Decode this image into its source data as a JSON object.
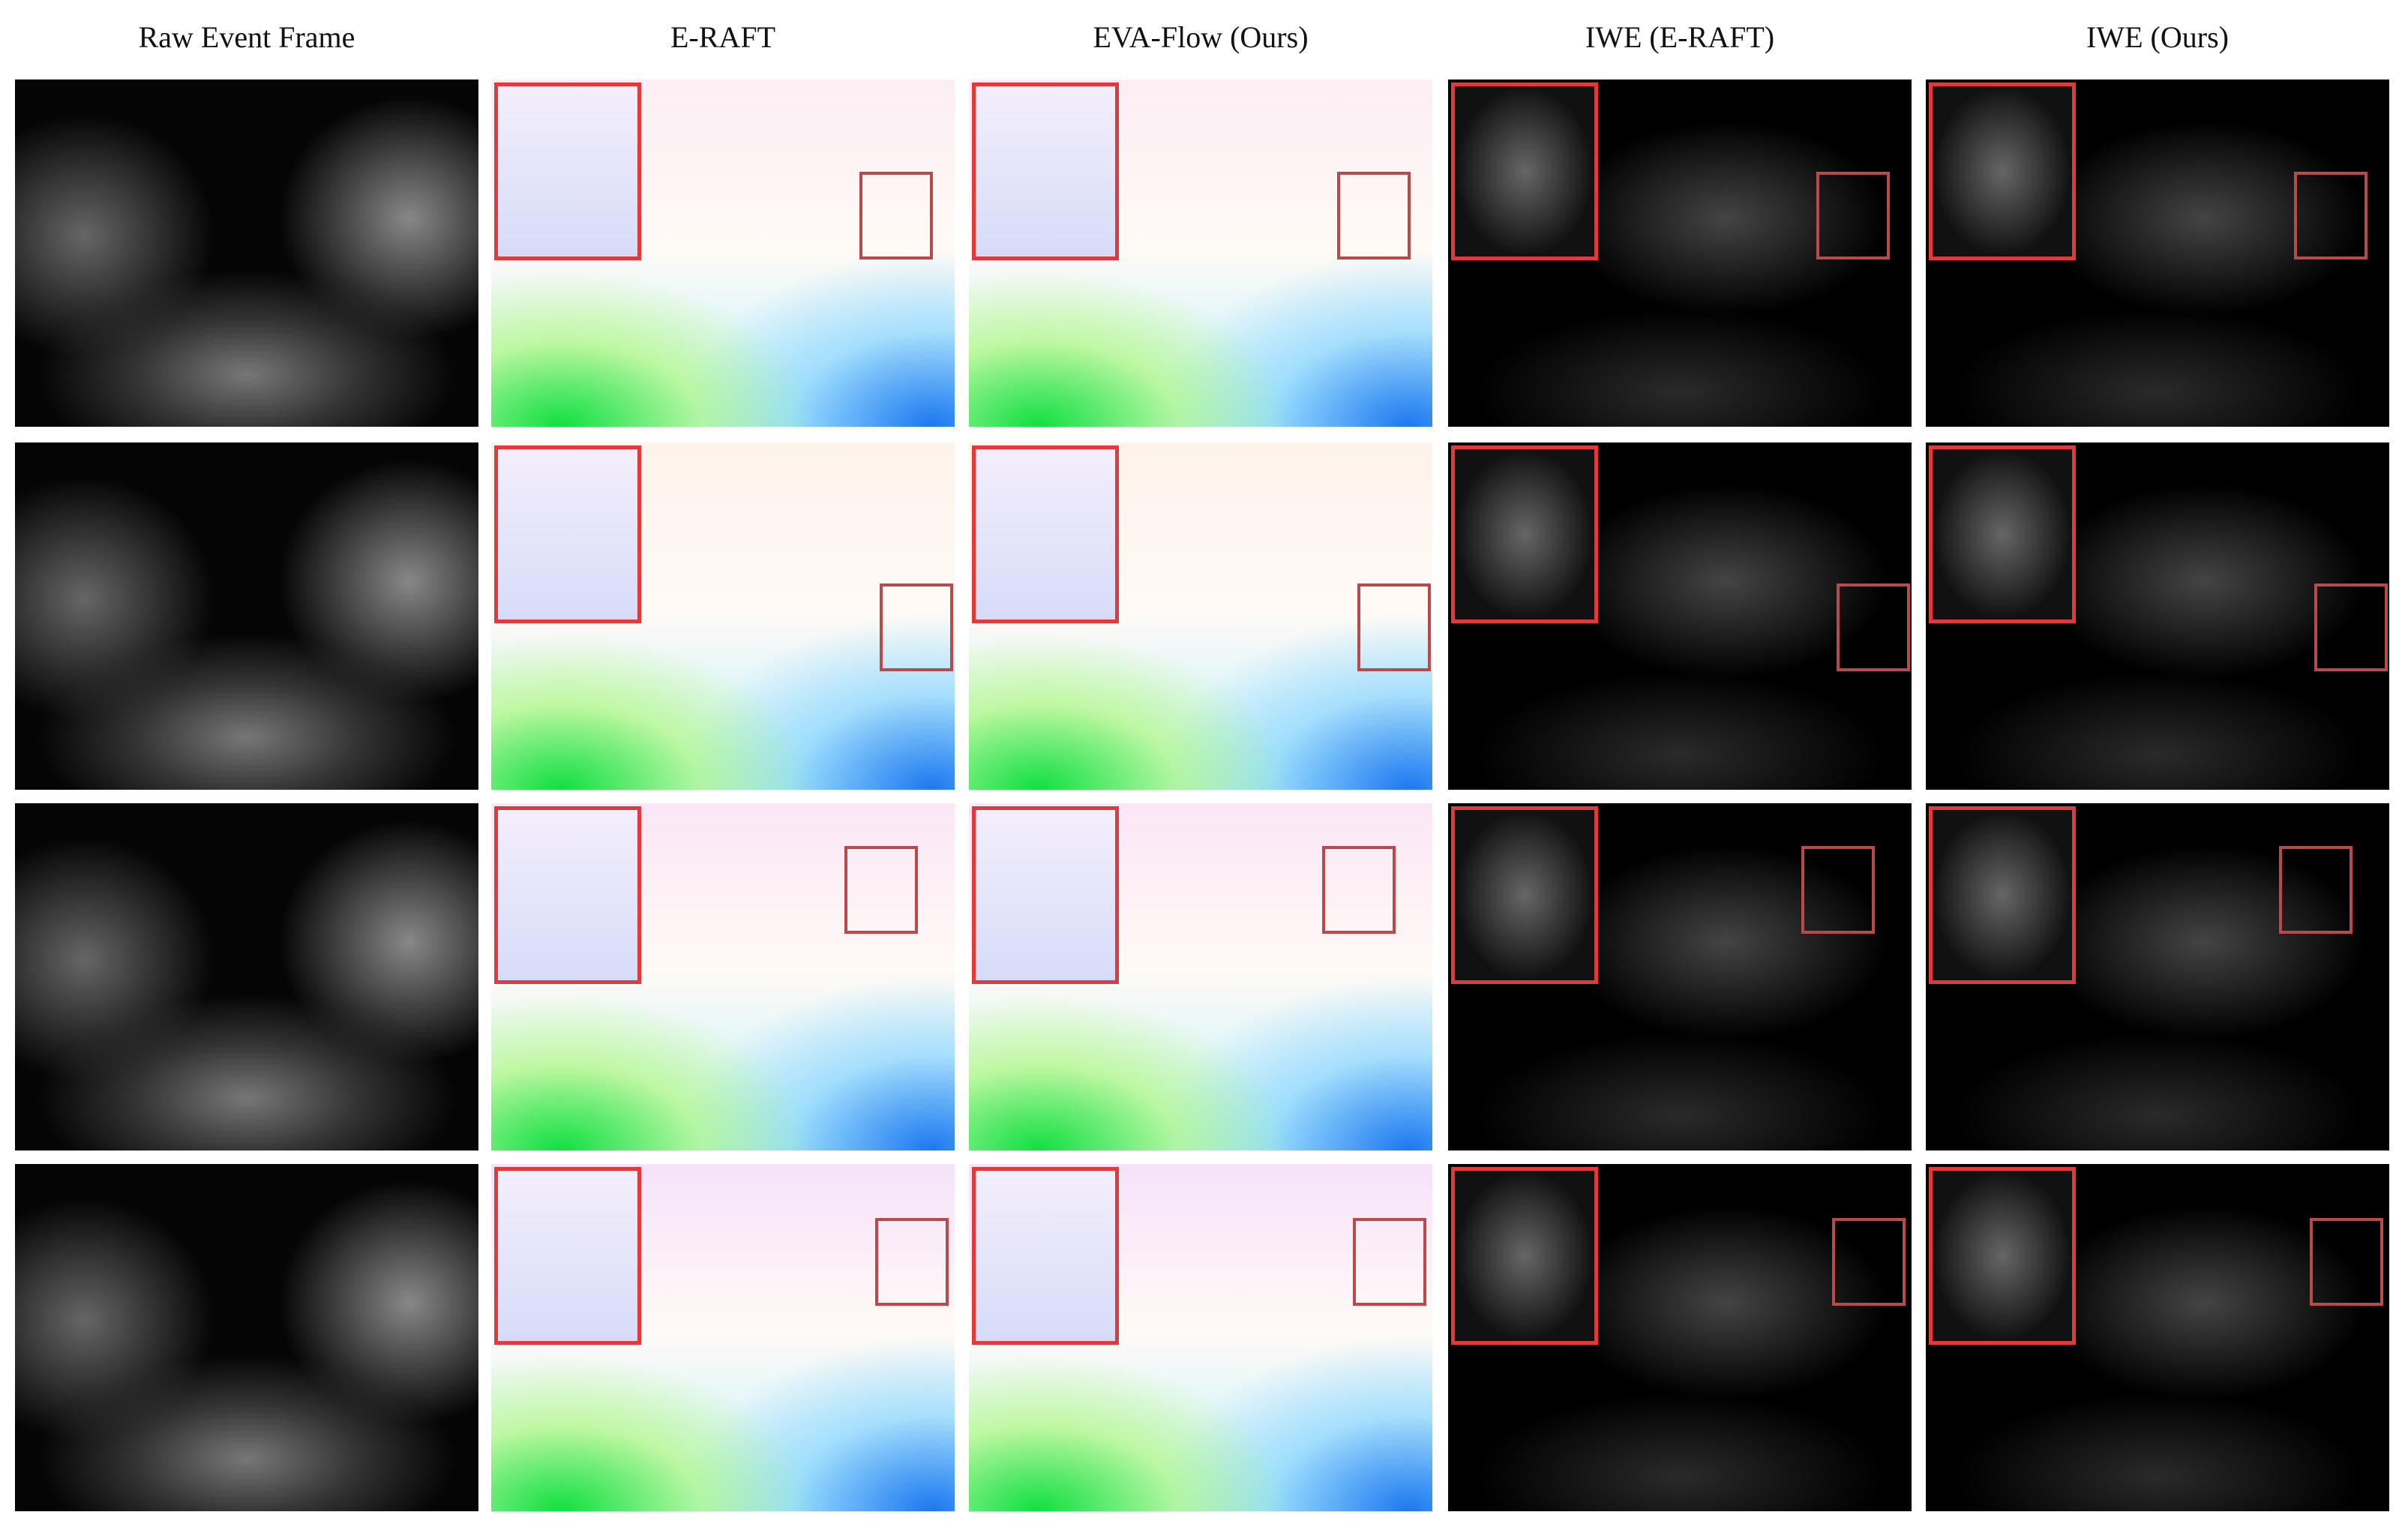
{
  "columns": [
    "Raw Event Frame",
    "E-RAFT",
    "EVA-Flow (Ours)",
    "IWE (E-RAFT)",
    "IWE (Ours)"
  ]
}
